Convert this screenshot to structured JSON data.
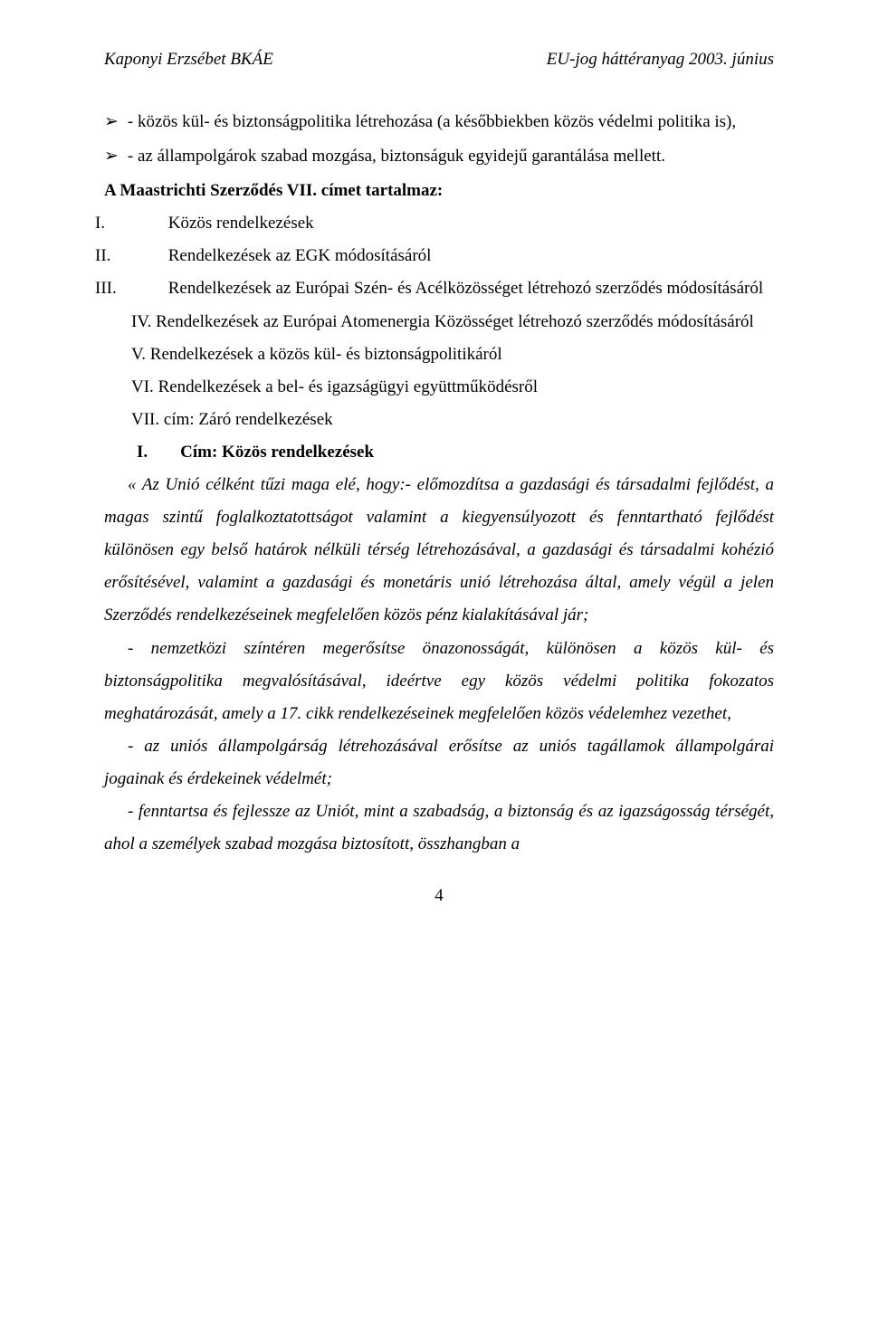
{
  "header": {
    "left": "Kaponyi Erzsébet BKÁE",
    "right": "EU-jog háttéranyag 2003. június"
  },
  "bullets": [
    "- közös kül- és biztonságpolitika létrehozása (a későbbiekben közös védelmi politika is),",
    "- az állampolgárok szabad mozgása, biztonságuk egyidejű garantálása mellett."
  ],
  "intro_line_bold": "A Maastrichti Szerződés VII. címet tartalmaz:",
  "roman_items": [
    {
      "label": "I.",
      "text": "Közös rendelkezések"
    },
    {
      "label": "II.",
      "text": "Rendelkezések az EGK módosításáról"
    },
    {
      "label": "III.",
      "text": "Rendelkezések az Európai Szén- és Acélközösséget létrehozó szerződés módosításáról"
    },
    {
      "label": "IV.",
      "text": "Rendelkezések az Európai Atomenergia Közösséget létrehozó szerződés módosításáról"
    },
    {
      "label": "V.",
      "text": "Rendelkezések a közös kül- és biztonságpolitikáról"
    },
    {
      "label": "VI.",
      "text": "Rendelkezések a bel- és igazságügyi együttműködésről"
    },
    {
      "label": "VII.",
      "text": "cím: Záró rendelkezések"
    }
  ],
  "section": {
    "roman": "I.",
    "title": "Cím: Közös rendelkezések"
  },
  "quote": {
    "p1": "« Az Unió célként tűzi maga elé, hogy:- előmozdítsa a gazdasági és társadalmi fejlődést, a magas szintű foglalkoztatottságot valamint a kiegyensúlyozott és fenntartható fejlődést különösen egy belső határok nélküli térség létrehozásával, a gazdasági és társadalmi kohézió erősítésével, valamint a gazdasági és monetáris unió létrehozása által, amely végül a jelen Szerződés rendelkezéseinek megfelelően közös pénz kialakításával jár;",
    "p2": "- nemzetközi színtéren megerősítse önazonosságát, különösen a közös kül- és biztonságpolitika megvalósításával, ideértve egy közös védelmi politika fokozatos meghatározását, amely a 17. cikk rendelkezéseinek megfelelően közös védelemhez vezethet,",
    "p3": "- az uniós állampolgárság létrehozásával erősítse az uniós tagállamok állampolgárai jogainak és érdekeinek védelmét;",
    "p4": "- fenntartsa és fejlessze az Uniót, mint a szabadság, a biztonság és az igazságosság térségét, ahol a személyek szabad mozgása biztosított, összhangban a"
  },
  "page_number": "4"
}
